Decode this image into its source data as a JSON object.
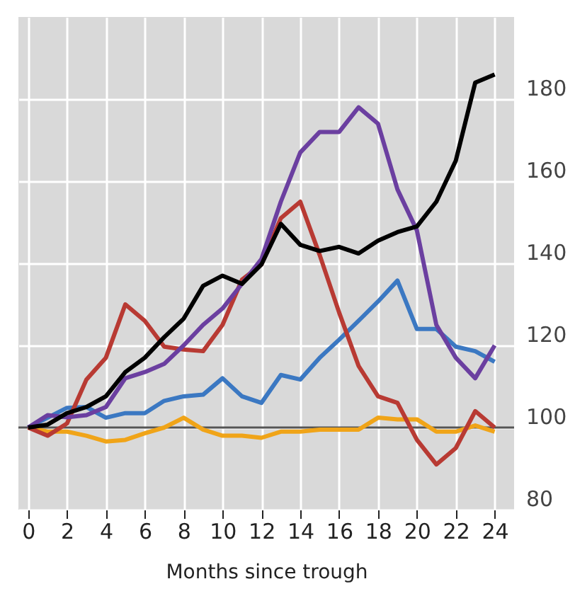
{
  "chart_data": {
    "type": "line",
    "xlabel": "Months since trough",
    "x": [
      0,
      1,
      2,
      3,
      4,
      5,
      6,
      7,
      8,
      9,
      10,
      11,
      12,
      13,
      14,
      15,
      16,
      17,
      18,
      19,
      20,
      21,
      22,
      23,
      24
    ],
    "series": [
      {
        "color": "#f0a418",
        "values": [
          100,
          99,
          99,
          98,
          96.6,
          97,
          98.6,
          100,
          102.4,
          99.5,
          98,
          98,
          97.5,
          99,
          99,
          99.5,
          99.5,
          99.5,
          102.4,
          102,
          102,
          99,
          99,
          100.5,
          99
        ]
      },
      {
        "color": "#3b78c2",
        "values": [
          100,
          102.4,
          104.8,
          105,
          102.4,
          103.5,
          103.5,
          106.5,
          107.6,
          108,
          112,
          107.6,
          106,
          112.8,
          111.7,
          117,
          121.4,
          126,
          130.7,
          135.8,
          124,
          124,
          119.7,
          118.6,
          116
        ]
      },
      {
        "color": "#b83a33",
        "values": [
          100,
          98,
          101,
          111.7,
          117,
          130,
          126,
          119.7,
          119,
          118.6,
          125,
          136,
          139.7,
          151,
          155,
          142,
          128,
          115,
          107.6,
          106,
          97,
          91,
          95,
          104,
          100
        ]
      },
      {
        "color": "#6b3fa0",
        "values": [
          100,
          103,
          102.5,
          103,
          105,
          112,
          113.5,
          115.5,
          120,
          125,
          129,
          135,
          141,
          155,
          167,
          172,
          172,
          178,
          174,
          158,
          148,
          125,
          117,
          112,
          120
        ]
      },
      {
        "color": "#000000",
        "values": [
          100,
          100.7,
          103.5,
          105,
          107.6,
          113.5,
          117,
          122,
          126.5,
          134.5,
          137,
          135,
          139.7,
          149.6,
          144.5,
          143,
          144,
          142.4,
          145.5,
          147.6,
          149,
          155,
          165,
          184,
          186
        ]
      }
    ],
    "xlim": [
      -0.5,
      25
    ],
    "xticks": [
      0,
      2,
      4,
      6,
      8,
      10,
      12,
      14,
      16,
      18,
      20,
      22,
      24
    ],
    "ylim": [
      80,
      200
    ],
    "yticks": [
      80,
      100,
      120,
      140,
      160,
      180
    ],
    "ref_lines": [
      {
        "axis": "y",
        "value": 100,
        "color": "#555555"
      }
    ],
    "grid": true,
    "line_style": "solid"
  }
}
